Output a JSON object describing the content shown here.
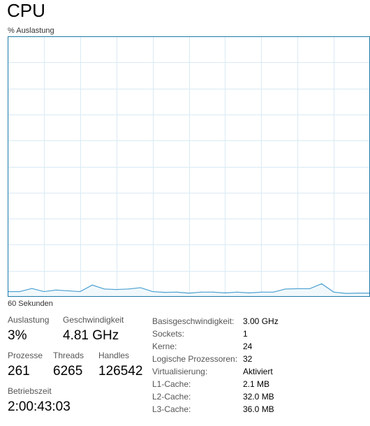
{
  "header": {
    "title": "CPU"
  },
  "graph": {
    "y_label": "% Auslastung",
    "x_label": "60 Sekunden",
    "colors": {
      "border": "#1b7aa8",
      "grid": "#d9eaf4",
      "line": "#4a9fd0",
      "fill": "#f1f8fc"
    }
  },
  "chart_data": {
    "type": "area",
    "ylim": [
      0,
      100
    ],
    "xlim": [
      0,
      60
    ],
    "grid": true,
    "x": [
      0,
      2,
      4,
      6,
      8,
      10,
      12,
      14,
      16,
      18,
      20,
      22,
      24,
      26,
      28,
      30,
      32,
      34,
      36,
      38,
      40,
      42,
      44,
      46,
      48,
      50,
      52,
      54,
      56,
      58,
      60
    ],
    "values": [
      2,
      2,
      3.2,
      2,
      2.6,
      2.3,
      2,
      4.5,
      3,
      2.8,
      3,
      3.5,
      2,
      1.7,
      1.8,
      1.4,
      1.8,
      1.8,
      1.5,
      1.8,
      1.5,
      1.8,
      1.8,
      3,
      3.1,
      3.1,
      5,
      1.8,
      1.3,
      1.4,
      1.4
    ]
  },
  "stats": {
    "usage": {
      "label": "Auslastung",
      "value": "3%"
    },
    "speed": {
      "label": "Geschwindigkeit",
      "value": "4.81 GHz"
    },
    "processes": {
      "label": "Prozesse",
      "value": "261"
    },
    "threads": {
      "label": "Threads",
      "value": "6265"
    },
    "handles": {
      "label": "Handles",
      "value": "126542"
    },
    "uptime": {
      "label": "Betriebszeit",
      "value": "2:00:43:03"
    }
  },
  "details": [
    {
      "label": "Basisgeschwindigkeit:",
      "value": "3.00 GHz"
    },
    {
      "label": "Sockets:",
      "value": "1"
    },
    {
      "label": "Kerne:",
      "value": "24"
    },
    {
      "label": "Logische Prozessoren:",
      "value": "32"
    },
    {
      "label": "Virtualisierung:",
      "value": "Aktiviert"
    },
    {
      "label": "L1-Cache:",
      "value": "2.1 MB"
    },
    {
      "label": "L2-Cache:",
      "value": "32.0 MB"
    },
    {
      "label": "L3-Cache:",
      "value": "36.0 MB"
    }
  ]
}
